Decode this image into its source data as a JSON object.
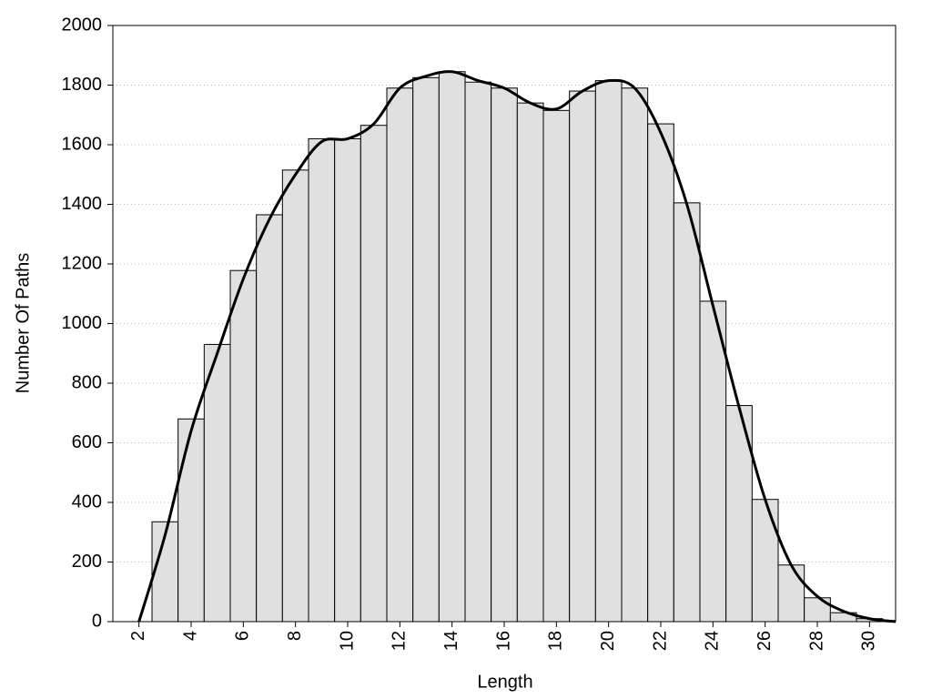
{
  "chart_data": {
    "type": "histogram",
    "x_label": "Length",
    "y_label": "Number Of Paths",
    "bins": [
      2.5,
      3.5,
      4.5,
      5.5,
      6.5,
      7.5,
      8.5,
      9.5,
      10.5,
      11.5,
      12.5,
      13.5,
      14.5,
      15.5,
      16.5,
      17.5,
      18.5,
      19.5,
      20.5,
      21.5,
      22.5,
      23.5,
      24.5,
      25.5,
      26.5,
      27.5,
      28.5,
      29.5,
      30.5
    ],
    "values": [
      335,
      680,
      930,
      1178,
      1365,
      1515,
      1620,
      1620,
      1665,
      1790,
      1825,
      1845,
      1810,
      1790,
      1740,
      1715,
      1780,
      1815,
      1790,
      1670,
      1405,
      1075,
      725,
      410,
      190,
      80,
      30,
      10
    ],
    "color": "#e0e0e0",
    "curve": {
      "color": "#000000",
      "x": [
        2,
        3,
        4,
        5,
        6,
        7,
        8,
        9,
        10,
        11,
        12,
        13,
        14,
        15,
        16,
        17,
        18,
        19,
        20,
        21,
        22,
        23,
        24,
        25,
        26,
        27,
        28,
        29,
        30,
        31
      ],
      "values": [
        0,
        290,
        640,
        900,
        1150,
        1350,
        1500,
        1610,
        1620,
        1670,
        1790,
        1830,
        1845,
        1815,
        1790,
        1740,
        1720,
        1780,
        1815,
        1790,
        1640,
        1400,
        1060,
        720,
        410,
        190,
        85,
        35,
        10,
        0
      ]
    },
    "xlim": [
      1,
      31
    ],
    "ylim": [
      0,
      2000
    ],
    "xticks": [
      2,
      4,
      6,
      8,
      10,
      12,
      14,
      16,
      18,
      20,
      22,
      24,
      26,
      28,
      30
    ],
    "yticks": [
      0,
      200,
      400,
      600,
      800,
      1000,
      1200,
      1400,
      1600,
      1800,
      2000
    ],
    "grid": true
  }
}
